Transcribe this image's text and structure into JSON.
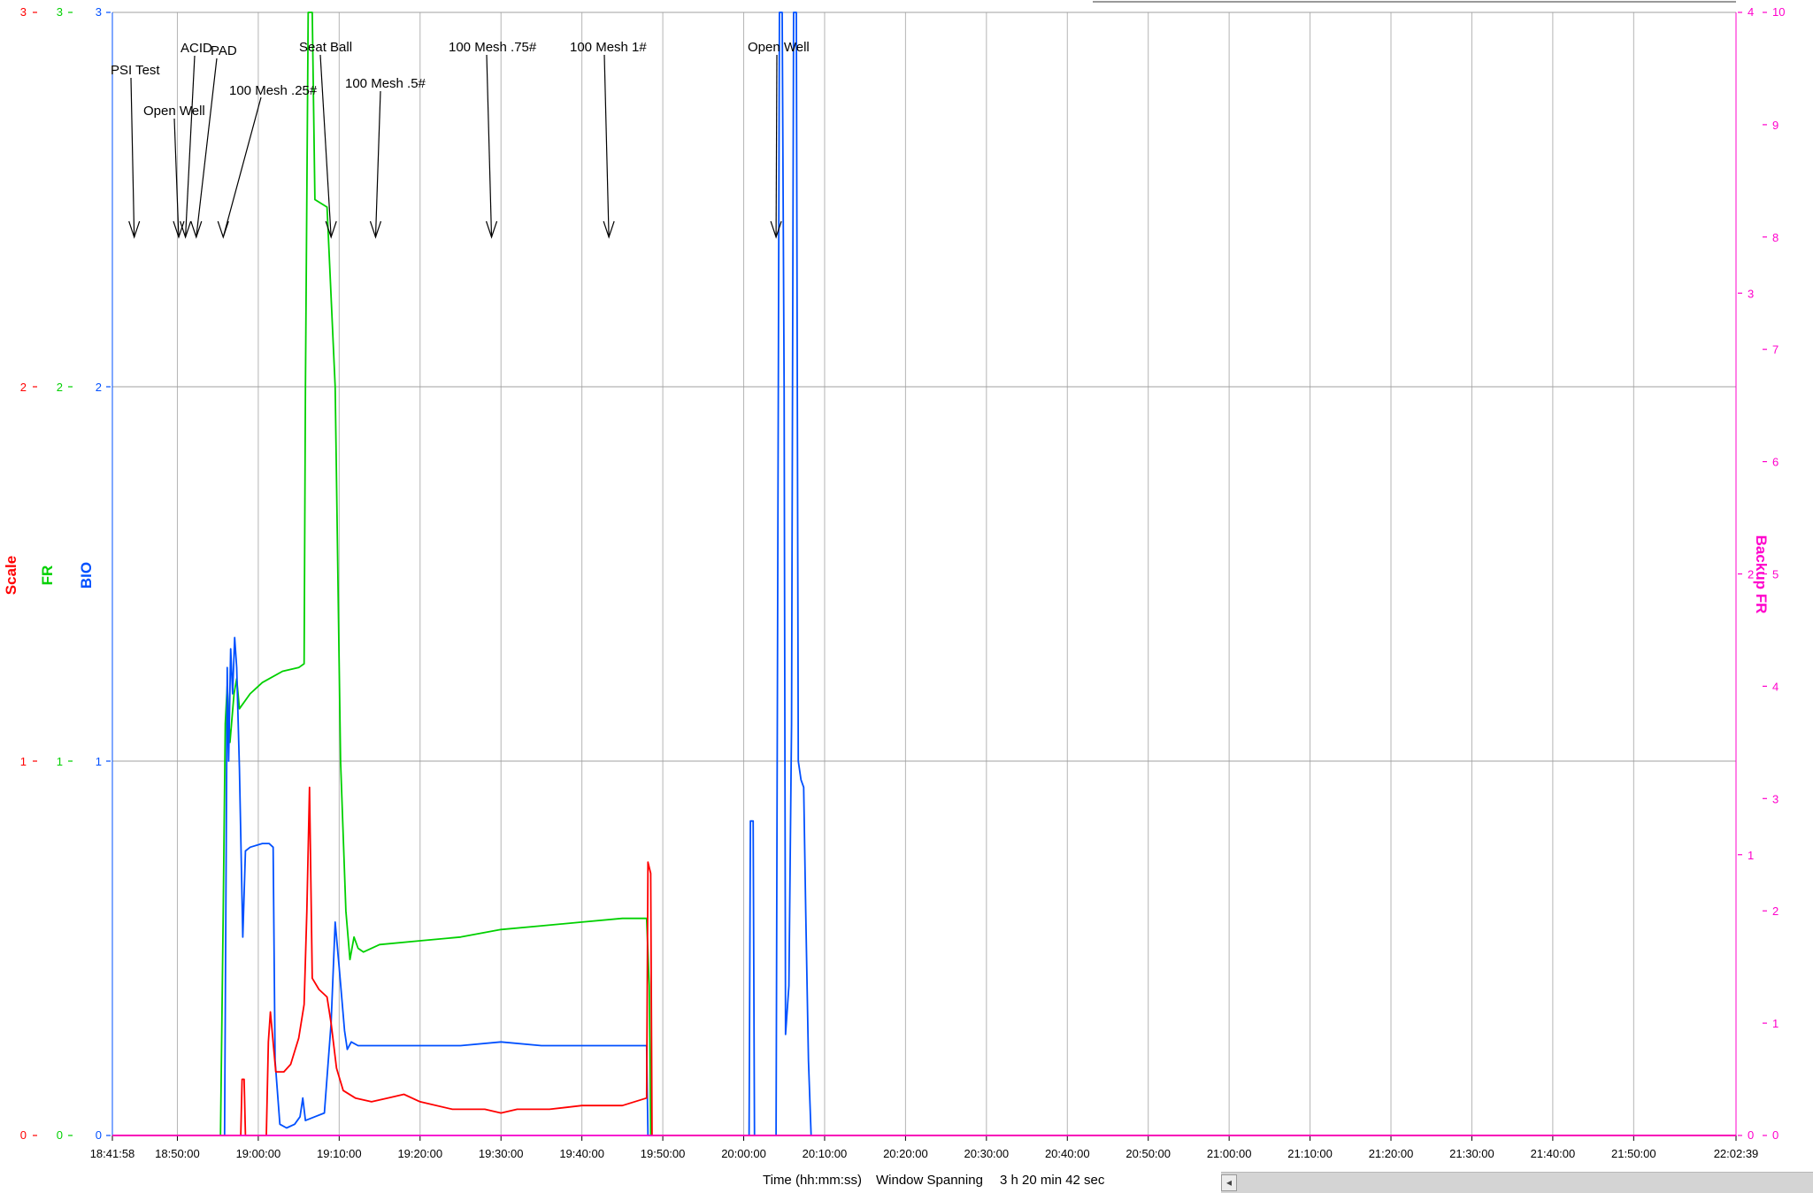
{
  "chart_data": {
    "type": "line",
    "x_range": [
      "18:41:58",
      "22:02:39"
    ],
    "x_tick_labels": [
      "18:41:58",
      "18:50:00",
      "19:00:00",
      "19:10:00",
      "19:20:00",
      "19:30:00",
      "19:40:00",
      "19:50:00",
      "20:00:00",
      "20:10:00",
      "20:20:00",
      "20:30:00",
      "20:40:00",
      "20:50:00",
      "21:00:00",
      "21:10:00",
      "21:20:00",
      "21:30:00",
      "21:40:00",
      "21:50:00",
      "22:02:39"
    ],
    "x_label": "Time (hh:mm:ss)",
    "window_spanning_label": "Window Spanning",
    "window_spanning_value": "3 h 20 min 42 sec",
    "grid": true,
    "axes": [
      {
        "name": "Scale",
        "side": "left",
        "color": "#ff0000",
        "range": [
          0,
          3
        ],
        "ticks": [
          "0",
          "1",
          "2",
          "3"
        ]
      },
      {
        "name": "FR",
        "side": "left",
        "color": "#00d000",
        "range": [
          0,
          3
        ],
        "ticks": [
          "0",
          "1",
          "2",
          "3"
        ]
      },
      {
        "name": "BIO",
        "side": "left",
        "color": "#0050ff",
        "range": [
          0,
          3
        ],
        "ticks": [
          "0",
          "1",
          "2",
          "3"
        ]
      },
      {
        "name": "Backup FR",
        "side": "right",
        "color": "#ff00cc",
        "range": [
          0,
          4
        ],
        "ticks": [
          "0",
          "1",
          "2",
          "3",
          "4"
        ]
      },
      {
        "name": "",
        "side": "right",
        "color": "#ff00cc",
        "range": [
          0,
          10
        ],
        "ticks": [
          "0",
          "1",
          "2",
          "3",
          "4",
          "5",
          "6",
          "7",
          "8",
          "9",
          "10"
        ]
      }
    ],
    "annotations": [
      {
        "label": "PSI Test",
        "time": "18:44:40"
      },
      {
        "label": "Open Well",
        "time": "18:50:10"
      },
      {
        "label": "ACID",
        "time": "18:51:00"
      },
      {
        "label": "PAD",
        "time": "18:52:20"
      },
      {
        "label": "100 Mesh .25#",
        "time": "18:55:40"
      },
      {
        "label": "Seat Ball",
        "time": "19:09:00"
      },
      {
        "label": "100 Mesh .5#",
        "time": "19:14:30"
      },
      {
        "label": "100 Mesh .75#",
        "time": "19:28:50"
      },
      {
        "label": "100 Mesh 1#",
        "time": "19:43:20"
      },
      {
        "label": "Open Well",
        "time": "20:04:00"
      }
    ],
    "series": [
      {
        "name": "FR",
        "color": "#00d000",
        "axis": "FR",
        "points": [
          [
            "18:41:58",
            0
          ],
          [
            "18:55:20",
            0
          ],
          [
            "18:55:40",
            0.6
          ],
          [
            "18:55:55",
            1.1
          ],
          [
            "18:56:10",
            1.2
          ],
          [
            "18:56:30",
            1.05
          ],
          [
            "18:57:00",
            1.18
          ],
          [
            "18:57:20",
            1.22
          ],
          [
            "18:57:40",
            1.14
          ],
          [
            "18:59:00",
            1.18
          ],
          [
            "19:00:30",
            1.21
          ],
          [
            "19:03:00",
            1.24
          ],
          [
            "19:05:00",
            1.25
          ],
          [
            "19:05:40",
            1.26
          ],
          [
            "19:05:50",
            2.0
          ],
          [
            "19:06:10",
            3.0
          ],
          [
            "19:06:40",
            3.0
          ],
          [
            "19:07:00",
            2.5
          ],
          [
            "19:08:30",
            2.48
          ],
          [
            "19:09:30",
            2.0
          ],
          [
            "19:10:10",
            1.0
          ],
          [
            "19:10:50",
            0.6
          ],
          [
            "19:11:20",
            0.47
          ],
          [
            "19:11:50",
            0.53
          ],
          [
            "19:12:20",
            0.5
          ],
          [
            "19:13:00",
            0.49
          ],
          [
            "19:15:00",
            0.51
          ],
          [
            "19:20:00",
            0.52
          ],
          [
            "19:25:00",
            0.53
          ],
          [
            "19:30:00",
            0.55
          ],
          [
            "19:35:00",
            0.56
          ],
          [
            "19:40:00",
            0.57
          ],
          [
            "19:45:00",
            0.58
          ],
          [
            "19:48:00",
            0.58
          ],
          [
            "19:48:20",
            0.4
          ],
          [
            "19:48:30",
            0.0
          ],
          [
            "22:02:39",
            0
          ]
        ]
      },
      {
        "name": "BIO",
        "color": "#0050ff",
        "axis": "BIO",
        "points": [
          [
            "18:41:58",
            0
          ],
          [
            "18:55:50",
            0
          ],
          [
            "18:56:10",
            1.25
          ],
          [
            "18:56:20",
            1.0
          ],
          [
            "18:56:35",
            1.3
          ],
          [
            "18:56:50",
            1.18
          ],
          [
            "18:57:05",
            1.33
          ],
          [
            "18:57:20",
            1.25
          ],
          [
            "18:57:40",
            0.98
          ],
          [
            "18:58:05",
            0.53
          ],
          [
            "18:58:25",
            0.76
          ],
          [
            "18:59:00",
            0.77
          ],
          [
            "19:00:30",
            0.78
          ],
          [
            "19:01:20",
            0.78
          ],
          [
            "19:01:50",
            0.77
          ],
          [
            "19:02:05",
            0.2
          ],
          [
            "19:02:40",
            0.03
          ],
          [
            "19:03:30",
            0.02
          ],
          [
            "19:04:30",
            0.03
          ],
          [
            "19:05:10",
            0.05
          ],
          [
            "19:05:30",
            0.1
          ],
          [
            "19:05:50",
            0.04
          ],
          [
            "19:07:00",
            0.05
          ],
          [
            "19:08:10",
            0.06
          ],
          [
            "19:09:00",
            0.3
          ],
          [
            "19:09:30",
            0.57
          ],
          [
            "19:10:00",
            0.45
          ],
          [
            "19:10:40",
            0.28
          ],
          [
            "19:11:00",
            0.23
          ],
          [
            "19:11:30",
            0.25
          ],
          [
            "19:12:20",
            0.24
          ],
          [
            "19:15:00",
            0.24
          ],
          [
            "19:20:00",
            0.24
          ],
          [
            "19:25:00",
            0.24
          ],
          [
            "19:30:00",
            0.25
          ],
          [
            "19:35:00",
            0.24
          ],
          [
            "19:40:00",
            0.24
          ],
          [
            "19:45:00",
            0.24
          ],
          [
            "19:48:00",
            0.24
          ],
          [
            "19:48:10",
            0.0
          ],
          [
            "20:00:40",
            0
          ],
          [
            "20:00:50",
            0.84
          ],
          [
            "20:01:10",
            0.84
          ],
          [
            "20:01:20",
            0.0
          ],
          [
            "20:04:00",
            0
          ],
          [
            "20:04:25",
            3.0
          ],
          [
            "20:04:45",
            3.0
          ],
          [
            "20:05:00",
            2.0
          ],
          [
            "20:05:10",
            0.27
          ],
          [
            "20:05:35",
            0.4
          ],
          [
            "20:05:55",
            1.1
          ],
          [
            "20:06:10",
            3.0
          ],
          [
            "20:06:30",
            3.0
          ],
          [
            "20:06:45",
            1.0
          ],
          [
            "20:07:05",
            0.95
          ],
          [
            "20:07:25",
            0.93
          ],
          [
            "20:07:40",
            0.6
          ],
          [
            "20:08:00",
            0.2
          ],
          [
            "20:08:20",
            0.0
          ],
          [
            "22:02:39",
            0
          ]
        ]
      },
      {
        "name": "Scale",
        "color": "#ff0000",
        "axis": "Scale",
        "points": [
          [
            "18:41:58",
            0
          ],
          [
            "18:57:50",
            0
          ],
          [
            "18:58:00",
            0.15
          ],
          [
            "18:58:15",
            0.15
          ],
          [
            "18:58:25",
            0
          ],
          [
            "19:01:00",
            0
          ],
          [
            "19:01:15",
            0.25
          ],
          [
            "19:01:30",
            0.33
          ],
          [
            "19:02:10",
            0.17
          ],
          [
            "19:03:10",
            0.17
          ],
          [
            "19:04:00",
            0.19
          ],
          [
            "19:05:00",
            0.26
          ],
          [
            "19:05:40",
            0.35
          ],
          [
            "19:06:00",
            0.6
          ],
          [
            "19:06:20",
            0.93
          ],
          [
            "19:06:40",
            0.42
          ],
          [
            "19:07:30",
            0.39
          ],
          [
            "19:08:30",
            0.37
          ],
          [
            "19:09:00",
            0.3
          ],
          [
            "19:09:40",
            0.18
          ],
          [
            "19:10:30",
            0.12
          ],
          [
            "19:12:00",
            0.1
          ],
          [
            "19:14:00",
            0.09
          ],
          [
            "19:16:00",
            0.1
          ],
          [
            "19:18:00",
            0.11
          ],
          [
            "19:20:00",
            0.09
          ],
          [
            "19:24:00",
            0.07
          ],
          [
            "19:28:00",
            0.07
          ],
          [
            "19:30:00",
            0.06
          ],
          [
            "19:32:00",
            0.07
          ],
          [
            "19:36:00",
            0.07
          ],
          [
            "19:40:00",
            0.08
          ],
          [
            "19:45:00",
            0.08
          ],
          [
            "19:48:00",
            0.1
          ],
          [
            "19:48:10",
            0.73
          ],
          [
            "19:48:30",
            0.7
          ],
          [
            "19:48:40",
            0.0
          ],
          [
            "22:02:39",
            0
          ]
        ]
      },
      {
        "name": "Backup FR",
        "color": "#ff00cc",
        "axis": "Backup FR",
        "points": [
          [
            "18:41:58",
            0
          ],
          [
            "22:02:39",
            0
          ]
        ]
      }
    ]
  }
}
